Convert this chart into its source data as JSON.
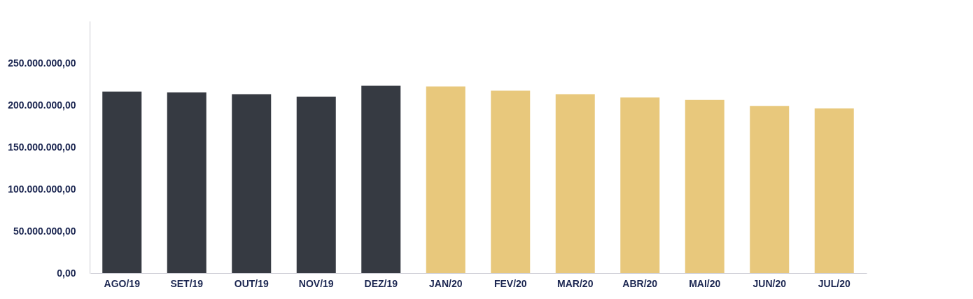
{
  "chart_data": {
    "type": "bar",
    "categories": [
      "AGO/19",
      "SET/19",
      "OUT/19",
      "NOV/19",
      "DEZ/19",
      "JAN/20",
      "FEV/20",
      "MAR/20",
      "ABR/20",
      "MAI/20",
      "JUN/20",
      "JUL/20"
    ],
    "values": [
      216000000,
      215000000,
      213000000,
      210000000,
      223000000,
      222000000,
      217000000,
      213000000,
      209000000,
      206000000,
      199000000,
      196000000
    ],
    "colors": [
      "#363a42",
      "#363a42",
      "#363a42",
      "#363a42",
      "#363a42",
      "#e8c87c",
      "#e8c87c",
      "#e8c87c",
      "#e8c87c",
      "#e8c87c",
      "#e8c87c",
      "#e8c87c"
    ],
    "ylim": [
      0,
      300000000
    ],
    "yticks": [
      {
        "value": 0,
        "label": "0,00"
      },
      {
        "value": 50000000,
        "label": "50.000.000,00"
      },
      {
        "value": 100000000,
        "label": "100.000.000,00"
      },
      {
        "value": 150000000,
        "label": "150.000.000,00"
      },
      {
        "value": 200000000,
        "label": "200.000.000,00"
      },
      {
        "value": 250000000,
        "label": "250.000.000,00"
      }
    ],
    "grid": false
  }
}
